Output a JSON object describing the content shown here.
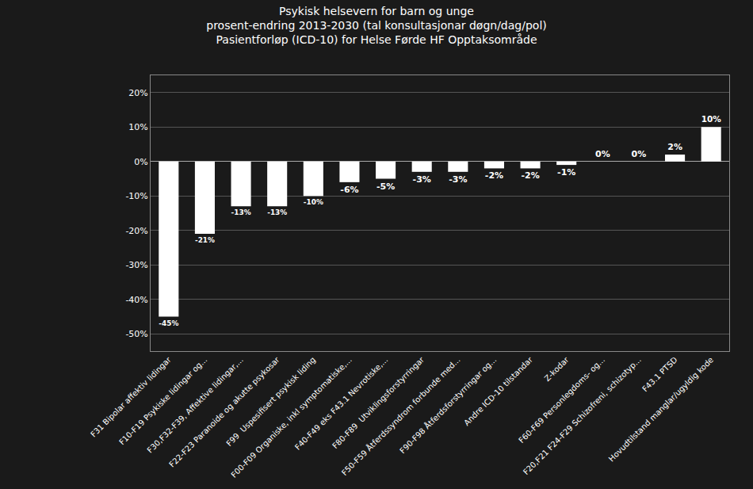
{
  "chart_data": {
    "type": "bar",
    "title": "Psykisk helsevern for barn og unge\nprosent-endring 2013-2030 (tal konsultasjonar døgn/dag/pol)\nPasientforløp (ICD-10) for Helse Førde HF Opptaksområde",
    "categories": [
      "F31 Bipolar affektiv lidingar",
      "F10-F19 Psykiske lidingar og...",
      "F30,F32-F39, Affektive lidingar,...",
      "F22-F23 Paranoide og akutte psykosar",
      "F99  Uspesifisert psykisk liding",
      "F00-F09 Organiske, inkl symptomatiske,...",
      "F40-F49 eks F43.1 Nevrotiske,...",
      "F80-F89  Utviklingsforstyrringar",
      "F50-F59 Åtferdssyndrom forbunde med...",
      "F90-F98 Åtferdsforstyrringar og...",
      "Andre ICD-10 tilstandar",
      "Z-kodar",
      "F60-F69 Personlegdoms- og...",
      "F20,F21 F24-F29 Schizofreni, schizotyp...",
      "F43.1 PTSD",
      "Hovudtilstand manglar/ugyldig kode"
    ],
    "values": [
      -45,
      -21,
      -13,
      -13,
      -10,
      -6,
      -5,
      -3,
      -3,
      -2,
      -2,
      -1,
      0,
      0,
      2,
      10
    ],
    "value_labels": [
      "-45%",
      "-21%",
      "-13%",
      "-13%",
      "-10%",
      "-6%",
      "-5%",
      "-3%",
      "-3%",
      "-2%",
      "-2%",
      "-1%",
      "0%",
      "0%",
      "2%",
      "10%"
    ],
    "data_labels": true,
    "color": "#ffffff",
    "ylim": [
      -55,
      25
    ],
    "yticks": [
      {
        "value": -50,
        "label": "-50%"
      },
      {
        "value": -40,
        "label": "-40%"
      },
      {
        "value": -30,
        "label": "-30%"
      },
      {
        "value": -20,
        "label": "-20%"
      },
      {
        "value": -10,
        "label": "-10%"
      },
      {
        "value": 0,
        "label": "0%"
      },
      {
        "value": 10,
        "label": "10%"
      },
      {
        "value": 20,
        "label": "20%"
      }
    ],
    "grid": true
  }
}
